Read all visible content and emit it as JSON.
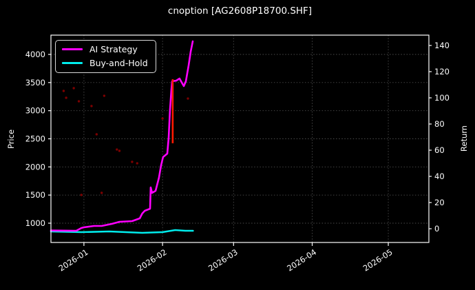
{
  "colors": {
    "background": "#000000",
    "text": "#ffffff",
    "grid": "#777777",
    "spine": "#ffffff",
    "ai_strategy": "#ff00ff",
    "buy_and_hold": "#00eded",
    "trade_marker": "#ff1a00",
    "scatter": "#8b0000"
  },
  "chart_data": {
    "type": "line",
    "title": "cnoption [AG2608P18700.SHF]",
    "grid": "dotted",
    "legend_position": "upper-left",
    "x_axis": {
      "domain": [
        "2025-12-19",
        "2026-05-17"
      ],
      "ticks": [
        {
          "date": "2026-01-01",
          "label": "2026-01"
        },
        {
          "date": "2026-02-01",
          "label": "2026-02"
        },
        {
          "date": "2026-03-01",
          "label": "2026-03"
        },
        {
          "date": "2026-04-01",
          "label": "2026-04"
        },
        {
          "date": "2026-05-01",
          "label": "2026-05"
        }
      ]
    },
    "price_axis": {
      "label": "Price",
      "side": "left",
      "ticks": [
        1000,
        1500,
        2000,
        2500,
        3000,
        3500,
        4000
      ],
      "range": [
        657,
        4343
      ]
    },
    "return_axis": {
      "label": "Return",
      "side": "right",
      "ticks": [
        0,
        20,
        40,
        60,
        80,
        100,
        120,
        140
      ],
      "range": [
        -10.5,
        147.9
      ]
    },
    "series": [
      {
        "name": "AI Strategy",
        "color": "#ff00ff",
        "axis": "price",
        "width": 2.6,
        "points": [
          [
            "2025-12-19",
            870
          ],
          [
            "2025-12-24",
            868
          ],
          [
            "2025-12-29",
            865
          ],
          [
            "2025-12-31",
            914
          ],
          [
            "2026-01-01",
            926
          ],
          [
            "2026-01-05",
            951
          ],
          [
            "2026-01-08",
            951
          ],
          [
            "2026-01-12",
            988
          ],
          [
            "2026-01-15",
            1024
          ],
          [
            "2026-01-20",
            1037
          ],
          [
            "2026-01-23",
            1086
          ],
          [
            "2026-01-24",
            1171
          ],
          [
            "2026-01-25",
            1220
          ],
          [
            "2026-01-27T02:00",
            1257
          ],
          [
            "2026-01-27T08:00",
            1637
          ],
          [
            "2026-01-27T21:00",
            1539
          ],
          [
            "2026-01-29T06:00",
            1576
          ],
          [
            "2026-01-30T14:00",
            1808
          ],
          [
            "2026-01-31T10:00",
            2029
          ],
          [
            "2026-02-01T05:00",
            2176
          ],
          [
            "2026-02-02T21:00",
            2237
          ],
          [
            "2026-02-03T10:00",
            2518
          ],
          [
            "2026-02-03T22:00",
            3008
          ],
          [
            "2026-02-04T12:00",
            3375
          ],
          [
            "2026-02-04T19:00",
            3522
          ],
          [
            "2026-02-06T09:00",
            3534
          ],
          [
            "2026-02-07T17:00",
            3571
          ],
          [
            "2026-02-08T07:00",
            3522
          ],
          [
            "2026-02-09T09:00",
            3437
          ],
          [
            "2026-02-10T05:00",
            3522
          ],
          [
            "2026-02-11T07:00",
            3804
          ],
          [
            "2026-02-12T02:00",
            4049
          ],
          [
            "2026-02-12T22:00",
            4233
          ]
        ]
      },
      {
        "name": "Buy-and-Hold",
        "color": "#00eded",
        "axis": "price",
        "width": 2.6,
        "points": [
          [
            "2025-12-19",
            853
          ],
          [
            "2025-12-31",
            841
          ],
          [
            "2026-01-11",
            853
          ],
          [
            "2026-01-24",
            829
          ],
          [
            "2026-02-01",
            841
          ],
          [
            "2026-02-06",
            877
          ],
          [
            "2026-02-10",
            865
          ],
          [
            "2026-02-13",
            865
          ]
        ]
      }
    ],
    "trade_marker": {
      "date": "2026-02-05",
      "axis": "price",
      "from": 2420,
      "to": 3559,
      "color": "#ff1a00",
      "width": 2.6
    },
    "scatter": {
      "color": "#8b0000",
      "axis": "price",
      "radius": 1.7,
      "points": [
        [
          "2025-12-24",
          3351
        ],
        [
          "2025-12-25",
          3229
        ],
        [
          "2025-12-28",
          3400
        ],
        [
          "2025-12-30",
          3167
        ],
        [
          "2025-12-31",
          1502
        ],
        [
          "2026-01-04",
          3082
        ],
        [
          "2026-01-06",
          2580
        ],
        [
          "2026-01-08",
          1539
        ],
        [
          "2026-01-09",
          3265
        ],
        [
          "2026-01-14",
          2310
        ],
        [
          "2026-01-15",
          2286
        ],
        [
          "2026-01-20",
          2090
        ],
        [
          "2026-01-22",
          2065
        ],
        [
          "2026-02-01",
          2861
        ],
        [
          "2026-02-11",
          3216
        ]
      ]
    }
  }
}
